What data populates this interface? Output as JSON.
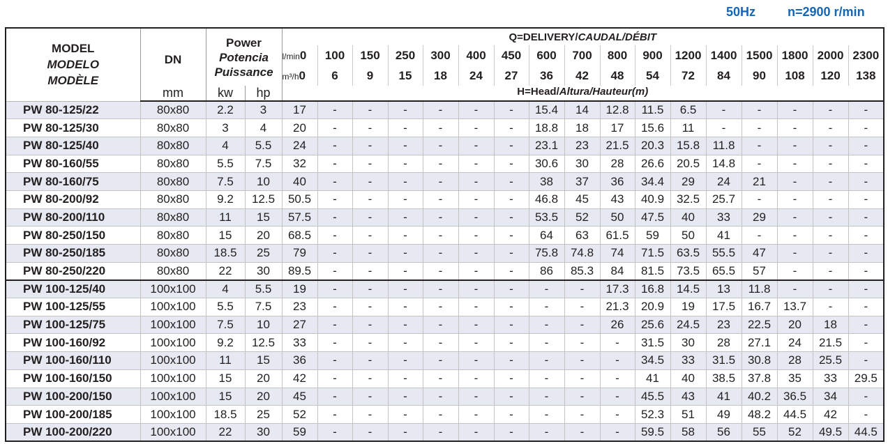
{
  "header_right": {
    "frequency": "50Hz",
    "speed": "n=2900 r/min"
  },
  "table": {
    "model_header": [
      "MODEL",
      "MODELO",
      "MODÈLE"
    ],
    "dn_header": "DN",
    "dn_unit": "mm",
    "power_header": [
      "Power",
      "Potencia",
      "Puissance"
    ],
    "kw_unit": "kw",
    "hp_unit": "hp",
    "delivery_header": "Q=DELIVERY/",
    "delivery_header_italic": "CAUDAL/DÉBIT",
    "lmin_label": "l/min",
    "m3h_label": "m³/h",
    "head_header": "H=Head/",
    "head_header_italic": "Altura/Hauteur(m)",
    "lmin": [
      "0",
      "100",
      "150",
      "250",
      "300",
      "400",
      "450",
      "600",
      "700",
      "800",
      "900",
      "1200",
      "1400",
      "1500",
      "1800",
      "2000",
      "2300"
    ],
    "m3h": [
      "0",
      "6",
      "9",
      "15",
      "18",
      "24",
      "27",
      "36",
      "42",
      "48",
      "54",
      "72",
      "84",
      "90",
      "108",
      "120",
      "138"
    ],
    "rows": [
      {
        "model": "PW 80-125/22",
        "dn": "80x80",
        "kw": "2.2",
        "hp": "3",
        "h": [
          "17",
          "-",
          "-",
          "-",
          "-",
          "-",
          "-",
          "15.4",
          "14",
          "12.8",
          "11.5",
          "6.5",
          "-",
          "-",
          "-",
          "-",
          "-"
        ]
      },
      {
        "model": "PW 80-125/30",
        "dn": "80x80",
        "kw": "3",
        "hp": "4",
        "h": [
          "20",
          "-",
          "-",
          "-",
          "-",
          "-",
          "-",
          "18.8",
          "18",
          "17",
          "15.6",
          "11",
          "-",
          "-",
          "-",
          "-",
          "-"
        ]
      },
      {
        "model": "PW 80-125/40",
        "dn": "80x80",
        "kw": "4",
        "hp": "5.5",
        "h": [
          "24",
          "-",
          "-",
          "-",
          "-",
          "-",
          "-",
          "23.1",
          "23",
          "21.5",
          "20.3",
          "15.8",
          "11.8",
          "-",
          "-",
          "-",
          "-"
        ]
      },
      {
        "model": "PW 80-160/55",
        "dn": "80x80",
        "kw": "5.5",
        "hp": "7.5",
        "h": [
          "32",
          "-",
          "-",
          "-",
          "-",
          "-",
          "-",
          "30.6",
          "30",
          "28",
          "26.6",
          "20.5",
          "14.8",
          "-",
          "-",
          "-",
          "-"
        ]
      },
      {
        "model": "PW 80-160/75",
        "dn": "80x80",
        "kw": "7.5",
        "hp": "10",
        "h": [
          "40",
          "-",
          "-",
          "-",
          "-",
          "-",
          "-",
          "38",
          "37",
          "36",
          "34.4",
          "29",
          "24",
          "21",
          "-",
          "-",
          "-"
        ]
      },
      {
        "model": "PW 80-200/92",
        "dn": "80x80",
        "kw": "9.2",
        "hp": "12.5",
        "h": [
          "50.5",
          "-",
          "-",
          "-",
          "-",
          "-",
          "-",
          "46.8",
          "45",
          "43",
          "40.9",
          "32.5",
          "25.7",
          "-",
          "-",
          "-",
          "-"
        ]
      },
      {
        "model": "PW 80-200/110",
        "dn": "80x80",
        "kw": "11",
        "hp": "15",
        "h": [
          "57.5",
          "-",
          "-",
          "-",
          "-",
          "-",
          "-",
          "53.5",
          "52",
          "50",
          "47.5",
          "40",
          "33",
          "29",
          "-",
          "-",
          "-"
        ]
      },
      {
        "model": "PW 80-250/150",
        "dn": "80x80",
        "kw": "15",
        "hp": "20",
        "h": [
          "68.5",
          "-",
          "-",
          "-",
          "-",
          "-",
          "-",
          "64",
          "63",
          "61.5",
          "59",
          "50",
          "41",
          "-",
          "-",
          "-",
          "-"
        ]
      },
      {
        "model": "PW 80-250/185",
        "dn": "80x80",
        "kw": "18.5",
        "hp": "25",
        "h": [
          "79",
          "-",
          "-",
          "-",
          "-",
          "-",
          "-",
          "75.8",
          "74.8",
          "74",
          "71.5",
          "63.5",
          "55.5",
          "47",
          "-",
          "-",
          "-"
        ]
      },
      {
        "model": "PW 80-250/220",
        "dn": "80x80",
        "kw": "22",
        "hp": "30",
        "h": [
          "89.5",
          "-",
          "-",
          "-",
          "-",
          "-",
          "-",
          "86",
          "85.3",
          "84",
          "81.5",
          "73.5",
          "65.5",
          "57",
          "-",
          "-",
          "-"
        ]
      },
      {
        "model": "PW 100-125/40",
        "dn": "100x100",
        "kw": "4",
        "hp": "5.5",
        "h": [
          "19",
          "-",
          "-",
          "-",
          "-",
          "-",
          "-",
          "-",
          "-",
          "17.3",
          "16.8",
          "14.5",
          "13",
          "11.8",
          "-",
          "-",
          "-"
        ]
      },
      {
        "model": "PW 100-125/55",
        "dn": "100x100",
        "kw": "5.5",
        "hp": "7.5",
        "h": [
          "23",
          "-",
          "-",
          "-",
          "-",
          "-",
          "-",
          "-",
          "-",
          "21.3",
          "20.9",
          "19",
          "17.5",
          "16.7",
          "13.7",
          "-",
          "-"
        ]
      },
      {
        "model": "PW 100-125/75",
        "dn": "100x100",
        "kw": "7.5",
        "hp": "10",
        "h": [
          "27",
          "-",
          "-",
          "-",
          "-",
          "-",
          "-",
          "-",
          "-",
          "26",
          "25.6",
          "24.5",
          "23",
          "22.5",
          "20",
          "18",
          "-"
        ]
      },
      {
        "model": "PW 100-160/92",
        "dn": "100x100",
        "kw": "9.2",
        "hp": "12.5",
        "h": [
          "33",
          "-",
          "-",
          "-",
          "-",
          "-",
          "-",
          "-",
          "-",
          "-",
          "31.5",
          "30",
          "28",
          "27.1",
          "24",
          "21.5",
          "-"
        ]
      },
      {
        "model": "PW 100-160/110",
        "dn": "100x100",
        "kw": "11",
        "hp": "15",
        "h": [
          "36",
          "-",
          "-",
          "-",
          "-",
          "-",
          "-",
          "-",
          "-",
          "-",
          "34.5",
          "33",
          "31.5",
          "30.8",
          "28",
          "25.5",
          "-"
        ]
      },
      {
        "model": "PW 100-160/150",
        "dn": "100x100",
        "kw": "15",
        "hp": "20",
        "h": [
          "42",
          "-",
          "-",
          "-",
          "-",
          "-",
          "-",
          "-",
          "-",
          "-",
          "41",
          "40",
          "38.5",
          "37.8",
          "35",
          "33",
          "29.5"
        ]
      },
      {
        "model": "PW 100-200/150",
        "dn": "100x100",
        "kw": "15",
        "hp": "20",
        "h": [
          "45",
          "-",
          "-",
          "-",
          "-",
          "-",
          "-",
          "-",
          "-",
          "-",
          "45.5",
          "43",
          "41",
          "40.2",
          "36.5",
          "34",
          "-"
        ]
      },
      {
        "model": "PW 100-200/185",
        "dn": "100x100",
        "kw": "18.5",
        "hp": "25",
        "h": [
          "52",
          "-",
          "-",
          "-",
          "-",
          "-",
          "-",
          "-",
          "-",
          "-",
          "52.3",
          "51",
          "49",
          "48.2",
          "44.5",
          "42",
          "-"
        ]
      },
      {
        "model": "PW 100-200/220",
        "dn": "100x100",
        "kw": "22",
        "hp": "30",
        "h": [
          "59",
          "-",
          "-",
          "-",
          "-",
          "-",
          "-",
          "-",
          "-",
          "-",
          "59.5",
          "58",
          "56",
          "55",
          "52",
          "49.5",
          "44.5"
        ]
      }
    ]
  },
  "colors": {
    "accent": "#1565b5",
    "row_shade": "#e6e9f1"
  }
}
